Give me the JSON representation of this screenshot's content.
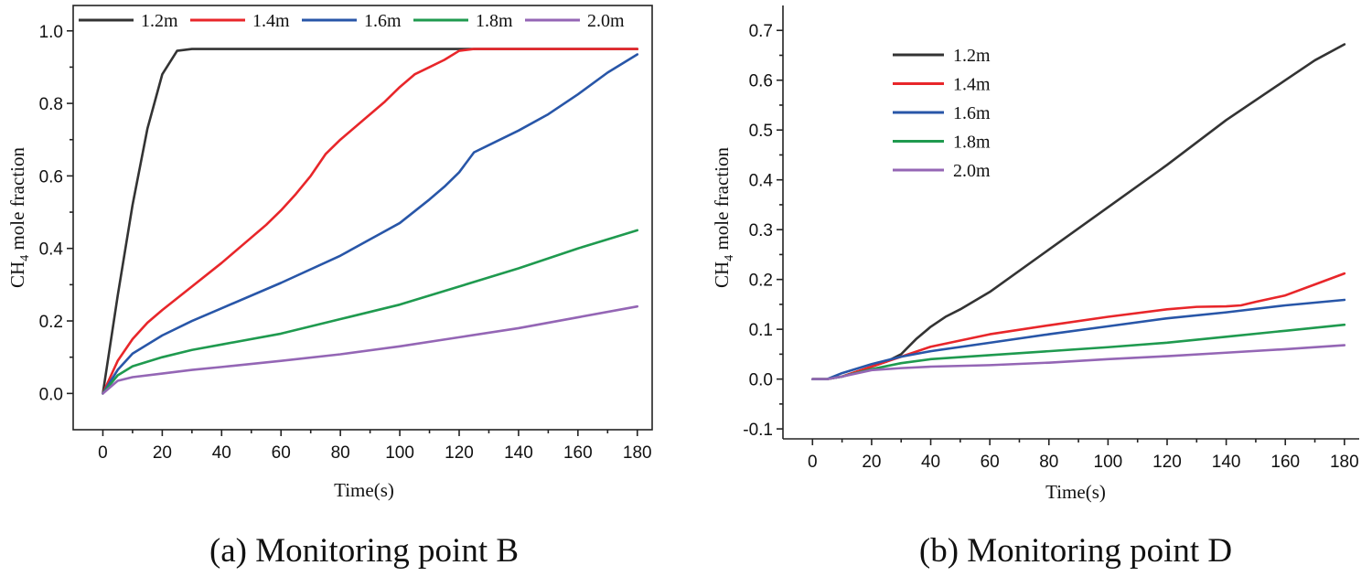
{
  "chart_data": [
    {
      "type": "line",
      "id": "panel-a",
      "caption": "(a) Monitoring point B",
      "xlabel": "Time(s)",
      "ylabel_main": "CH",
      "ylabel_sub": "4",
      "ylabel_rest": " mole fraction",
      "xlim": [
        -10,
        185
      ],
      "ylim": [
        -0.1,
        1.07
      ],
      "xticks": [
        0,
        20,
        40,
        60,
        80,
        100,
        120,
        140,
        160,
        180
      ],
      "yticks": [
        0.0,
        0.2,
        0.4,
        0.6,
        0.8,
        1.0
      ],
      "ytick_labels": [
        "0.0",
        "0.2",
        "0.4",
        "0.6",
        "0.8",
        "1.0"
      ],
      "legend_position": "top, single row",
      "series": [
        {
          "name": "1.2m",
          "color": "#333333",
          "x": [
            0,
            5,
            10,
            15,
            20,
            25,
            30,
            60,
            120,
            180
          ],
          "y": [
            0.0,
            0.27,
            0.52,
            0.73,
            0.88,
            0.945,
            0.95,
            0.95,
            0.95,
            0.95
          ]
        },
        {
          "name": "1.4m",
          "color": "#e8262a",
          "x": [
            0,
            5,
            10,
            15,
            20,
            30,
            40,
            50,
            55,
            60,
            65,
            70,
            75,
            80,
            90,
            95,
            100,
            105,
            110,
            115,
            120,
            125,
            180
          ],
          "y": [
            0.0,
            0.09,
            0.15,
            0.195,
            0.23,
            0.295,
            0.36,
            0.43,
            0.465,
            0.505,
            0.55,
            0.6,
            0.66,
            0.7,
            0.77,
            0.805,
            0.845,
            0.88,
            0.9,
            0.92,
            0.945,
            0.95,
            0.95
          ]
        },
        {
          "name": "1.6m",
          "color": "#2856a8",
          "x": [
            0,
            5,
            10,
            20,
            30,
            40,
            60,
            80,
            90,
            100,
            110,
            115,
            120,
            125,
            130,
            140,
            150,
            160,
            170,
            180
          ],
          "y": [
            0.0,
            0.065,
            0.11,
            0.16,
            0.2,
            0.235,
            0.305,
            0.38,
            0.425,
            0.47,
            0.535,
            0.57,
            0.61,
            0.665,
            0.685,
            0.725,
            0.77,
            0.825,
            0.885,
            0.935
          ]
        },
        {
          "name": "1.8m",
          "color": "#1f9a4f",
          "x": [
            0,
            5,
            10,
            20,
            30,
            40,
            60,
            80,
            100,
            120,
            140,
            160,
            180
          ],
          "y": [
            0.0,
            0.05,
            0.075,
            0.1,
            0.12,
            0.135,
            0.165,
            0.205,
            0.245,
            0.295,
            0.345,
            0.4,
            0.45
          ]
        },
        {
          "name": "2.0m",
          "color": "#9466b5",
          "x": [
            0,
            5,
            10,
            20,
            30,
            40,
            60,
            80,
            100,
            120,
            140,
            160,
            180
          ],
          "y": [
            0.0,
            0.035,
            0.045,
            0.055,
            0.065,
            0.073,
            0.09,
            0.108,
            0.13,
            0.155,
            0.18,
            0.21,
            0.24
          ]
        }
      ]
    },
    {
      "type": "line",
      "id": "panel-b",
      "caption": "(b) Monitoring point D",
      "xlabel": "Time(s)",
      "ylabel_main": "CH",
      "ylabel_sub": "4",
      "ylabel_rest": " mole fraction",
      "xlim": [
        -10,
        185
      ],
      "ylim": [
        -0.12,
        0.75
      ],
      "xticks": [
        0,
        20,
        40,
        60,
        80,
        100,
        120,
        140,
        160,
        180
      ],
      "yticks": [
        -0.1,
        0.0,
        0.1,
        0.2,
        0.3,
        0.4,
        0.5,
        0.6,
        0.7
      ],
      "ytick_labels": [
        "-0.1",
        "0.0",
        "0.1",
        "0.2",
        "0.3",
        "0.4",
        "0.5",
        "0.6",
        "0.7"
      ],
      "legend_position": "top-left, vertical",
      "series": [
        {
          "name": "1.2m",
          "color": "#333333",
          "x": [
            0,
            5,
            10,
            20,
            25,
            30,
            35,
            40,
            45,
            50,
            60,
            80,
            100,
            120,
            140,
            160,
            170,
            180
          ],
          "y": [
            0.0,
            0.0,
            0.005,
            0.025,
            0.035,
            0.05,
            0.08,
            0.105,
            0.125,
            0.14,
            0.175,
            0.26,
            0.345,
            0.43,
            0.52,
            0.6,
            0.64,
            0.672
          ]
        },
        {
          "name": "1.4m",
          "color": "#e8262a",
          "x": [
            0,
            5,
            10,
            20,
            30,
            40,
            60,
            80,
            100,
            120,
            130,
            140,
            145,
            150,
            160,
            170,
            180
          ],
          "y": [
            0.0,
            0.0,
            0.005,
            0.025,
            0.045,
            0.065,
            0.09,
            0.108,
            0.125,
            0.14,
            0.145,
            0.146,
            0.148,
            0.155,
            0.168,
            0.19,
            0.212
          ]
        },
        {
          "name": "1.6m",
          "color": "#2856a8",
          "x": [
            0,
            5,
            10,
            20,
            30,
            40,
            60,
            80,
            100,
            120,
            140,
            160,
            180
          ],
          "y": [
            0.0,
            0.0,
            0.012,
            0.03,
            0.045,
            0.056,
            0.073,
            0.09,
            0.106,
            0.122,
            0.134,
            0.148,
            0.159
          ]
        },
        {
          "name": "1.8m",
          "color": "#1f9a4f",
          "x": [
            0,
            5,
            10,
            20,
            30,
            40,
            60,
            80,
            100,
            120,
            140,
            160,
            180
          ],
          "y": [
            0.0,
            0.0,
            0.005,
            0.02,
            0.032,
            0.04,
            0.048,
            0.056,
            0.064,
            0.073,
            0.085,
            0.097,
            0.109
          ]
        },
        {
          "name": "2.0m",
          "color": "#9466b5",
          "x": [
            0,
            5,
            10,
            20,
            30,
            40,
            60,
            80,
            100,
            120,
            140,
            160,
            180
          ],
          "y": [
            0.0,
            0.0,
            0.005,
            0.018,
            0.022,
            0.025,
            0.028,
            0.033,
            0.04,
            0.046,
            0.053,
            0.06,
            0.068
          ]
        }
      ]
    }
  ]
}
